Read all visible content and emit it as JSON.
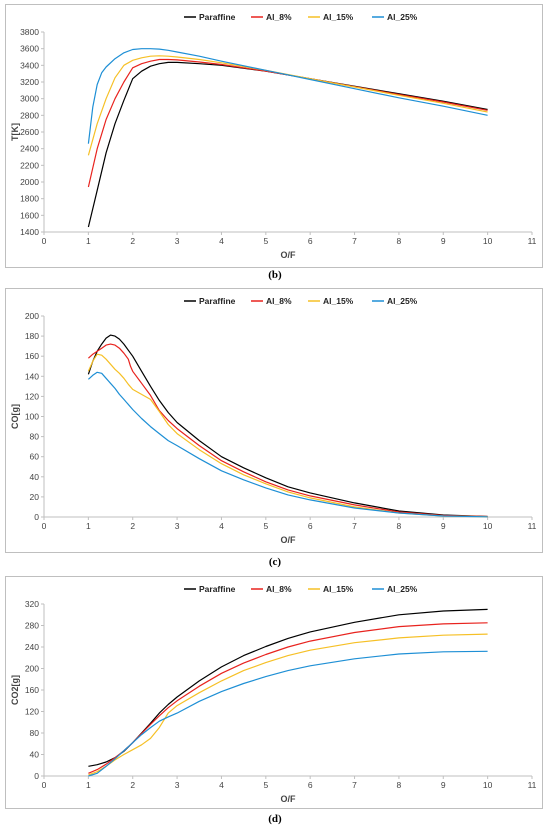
{
  "chart_data": [
    {
      "type": "line",
      "caption": "(b)",
      "xlabel": "O/F",
      "ylabel": "T[K]",
      "xlim": [
        0,
        11
      ],
      "ylim": [
        1400,
        3800
      ],
      "xticks": [
        0,
        1,
        2,
        3,
        4,
        5,
        6,
        7,
        8,
        9,
        10,
        11
      ],
      "yticks": [
        1400,
        1600,
        1800,
        2000,
        2200,
        2400,
        2600,
        2800,
        3000,
        3200,
        3400,
        3600,
        3800
      ],
      "legend": "top-center",
      "grid": false,
      "series": [
        {
          "name": "Paraffine",
          "color": "#000000",
          "x": [
            1,
            1.2,
            1.4,
            1.6,
            1.8,
            2.0,
            2.2,
            2.4,
            2.6,
            2.8,
            3.0,
            3.5,
            4,
            5,
            6,
            7,
            8,
            9,
            10
          ],
          "y": [
            1460,
            1900,
            2350,
            2700,
            2980,
            3240,
            3330,
            3390,
            3420,
            3435,
            3435,
            3420,
            3400,
            3330,
            3240,
            3150,
            3060,
            2970,
            2870
          ]
        },
        {
          "name": "Al_8%",
          "color": "#e8231e",
          "x": [
            1,
            1.2,
            1.4,
            1.6,
            1.8,
            2.0,
            2.2,
            2.4,
            2.6,
            2.8,
            3.0,
            3.5,
            4,
            5,
            6,
            7,
            8,
            9,
            10
          ],
          "y": [
            1940,
            2400,
            2750,
            3000,
            3200,
            3370,
            3420,
            3450,
            3470,
            3470,
            3465,
            3440,
            3410,
            3330,
            3240,
            3145,
            3050,
            2960,
            2860
          ]
        },
        {
          "name": "Al_15%",
          "color": "#f6c026",
          "x": [
            1,
            1.2,
            1.4,
            1.6,
            1.8,
            2.0,
            2.2,
            2.4,
            2.6,
            2.8,
            3.0,
            3.5,
            4,
            5,
            6,
            7,
            8,
            9,
            10
          ],
          "y": [
            2320,
            2700,
            3000,
            3250,
            3400,
            3460,
            3490,
            3510,
            3515,
            3510,
            3500,
            3470,
            3430,
            3340,
            3240,
            3140,
            3040,
            2945,
            2840
          ]
        },
        {
          "name": "Al_25%",
          "color": "#1e8fd5",
          "x": [
            1,
            1.1,
            1.2,
            1.3,
            1.4,
            1.6,
            1.8,
            2.0,
            2.2,
            2.4,
            2.6,
            2.8,
            3.0,
            3.5,
            4,
            5,
            6,
            7,
            8,
            9,
            10
          ],
          "y": [
            2460,
            2900,
            3170,
            3310,
            3380,
            3480,
            3550,
            3590,
            3600,
            3600,
            3595,
            3580,
            3560,
            3510,
            3450,
            3340,
            3230,
            3120,
            3010,
            2910,
            2800
          ]
        }
      ]
    },
    {
      "type": "line",
      "caption": "(c)",
      "xlabel": "O/F",
      "ylabel": "CO[g]",
      "xlim": [
        0,
        11
      ],
      "ylim": [
        0,
        200
      ],
      "xticks": [
        0,
        1,
        2,
        3,
        4,
        5,
        6,
        7,
        8,
        9,
        10,
        11
      ],
      "yticks": [
        0,
        20,
        40,
        60,
        80,
        100,
        120,
        140,
        160,
        180,
        200
      ],
      "legend": "top-center",
      "grid": false,
      "series": [
        {
          "name": "Paraffine",
          "color": "#000000",
          "x": [
            1,
            1.1,
            1.2,
            1.3,
            1.4,
            1.5,
            1.6,
            1.7,
            1.8,
            1.9,
            2.0,
            2.2,
            2.4,
            2.6,
            2.8,
            3.0,
            3.5,
            4,
            4.5,
            5,
            5.5,
            6,
            7,
            8,
            9,
            10
          ],
          "y": [
            142,
            155,
            165,
            172,
            178,
            181,
            180,
            177,
            172,
            166,
            160,
            145,
            130,
            116,
            104,
            94,
            76,
            60,
            49,
            39,
            30,
            24,
            14,
            6,
            2,
            0.5
          ]
        },
        {
          "name": "Al_8%",
          "color": "#e8231e",
          "x": [
            1,
            1.1,
            1.2,
            1.3,
            1.4,
            1.5,
            1.6,
            1.7,
            1.8,
            1.9,
            1.95,
            2.0,
            2.2,
            2.4,
            2.6,
            2.8,
            3.0,
            3.5,
            4,
            4.5,
            5,
            5.5,
            6,
            7,
            8,
            9,
            10
          ],
          "y": [
            158,
            162,
            165,
            168,
            171,
            172,
            171,
            168,
            163,
            157,
            150,
            145,
            133,
            121,
            106,
            96,
            88,
            71,
            56,
            45,
            35,
            27,
            21,
            12,
            5,
            1.5,
            0.5
          ]
        },
        {
          "name": "Al_15%",
          "color": "#f6c026",
          "x": [
            1,
            1.1,
            1.2,
            1.3,
            1.4,
            1.5,
            1.6,
            1.7,
            1.8,
            1.9,
            2.0,
            2.2,
            2.4,
            2.6,
            2.8,
            3.0,
            3.5,
            4,
            4.5,
            5,
            5.5,
            6,
            7,
            8,
            9,
            10
          ],
          "y": [
            145,
            155,
            162,
            161,
            157,
            152,
            147,
            143,
            138,
            132,
            127,
            122,
            117,
            105,
            92,
            83,
            67,
            53,
            42,
            33,
            25,
            19,
            10,
            4,
            1,
            0.3
          ]
        },
        {
          "name": "Al_25%",
          "color": "#1e8fd5",
          "x": [
            1,
            1.1,
            1.2,
            1.3,
            1.4,
            1.5,
            1.6,
            1.7,
            1.8,
            2.0,
            2.2,
            2.4,
            2.6,
            2.8,
            3.0,
            3.5,
            4,
            4.5,
            5,
            5.5,
            6,
            7,
            8,
            9,
            10
          ],
          "y": [
            137,
            141,
            144,
            143,
            138,
            133,
            128,
            122,
            117,
            107,
            98,
            90,
            83,
            76,
            71,
            58,
            46,
            37,
            29,
            22,
            17,
            9,
            4,
            1,
            0.2
          ]
        }
      ]
    },
    {
      "type": "line",
      "caption": "(d)",
      "xlabel": "O/F",
      "ylabel": "CO2[g]",
      "xlim": [
        0,
        11
      ],
      "ylim": [
        0,
        320
      ],
      "xticks": [
        0,
        1,
        2,
        3,
        4,
        5,
        6,
        7,
        8,
        9,
        10,
        11
      ],
      "yticks": [
        0,
        40,
        80,
        120,
        160,
        200,
        240,
        280,
        320
      ],
      "legend": "top-center",
      "grid": false,
      "series": [
        {
          "name": "Paraffine",
          "color": "#000000",
          "x": [
            1,
            1.2,
            1.4,
            1.6,
            1.8,
            2.0,
            2.2,
            2.4,
            2.6,
            2.8,
            3.0,
            3.5,
            4,
            4.5,
            5,
            5.5,
            6,
            7,
            8,
            9,
            10
          ],
          "y": [
            18,
            21,
            26,
            34,
            46,
            62,
            80,
            98,
            117,
            133,
            147,
            177,
            203,
            224,
            241,
            256,
            268,
            286,
            300,
            307,
            310
          ]
        },
        {
          "name": "Al_8%",
          "color": "#e8231e",
          "x": [
            1,
            1.2,
            1.4,
            1.6,
            1.8,
            2.0,
            2.2,
            2.4,
            2.6,
            2.8,
            3.0,
            3.5,
            4,
            4.5,
            5,
            5.5,
            6,
            7,
            8,
            9,
            10
          ],
          "y": [
            5,
            12,
            22,
            34,
            47,
            62,
            79,
            96,
            112,
            127,
            140,
            167,
            191,
            210,
            226,
            240,
            251,
            267,
            278,
            283,
            285
          ]
        },
        {
          "name": "Al_15%",
          "color": "#f6c026",
          "x": [
            1,
            1.2,
            1.4,
            1.6,
            1.8,
            2.0,
            2.2,
            2.4,
            2.6,
            2.8,
            3.0,
            3.5,
            4,
            4.5,
            5,
            5.5,
            6,
            7,
            8,
            9,
            10
          ],
          "y": [
            2,
            8,
            18,
            30,
            40,
            49,
            58,
            70,
            90,
            117,
            131,
            155,
            177,
            196,
            211,
            224,
            234,
            248,
            257,
            262,
            264
          ]
        },
        {
          "name": "Al_25%",
          "color": "#1e8fd5",
          "x": [
            1,
            1.2,
            1.4,
            1.6,
            1.8,
            2.0,
            2.2,
            2.4,
            2.6,
            2.8,
            3.0,
            3.5,
            4,
            4.5,
            5,
            5.5,
            6,
            7,
            8,
            9,
            10
          ],
          "y": [
            0,
            5,
            18,
            32,
            47,
            62,
            77,
            90,
            102,
            110,
            117,
            139,
            157,
            172,
            185,
            196,
            205,
            218,
            227,
            231,
            232
          ]
        }
      ]
    }
  ]
}
